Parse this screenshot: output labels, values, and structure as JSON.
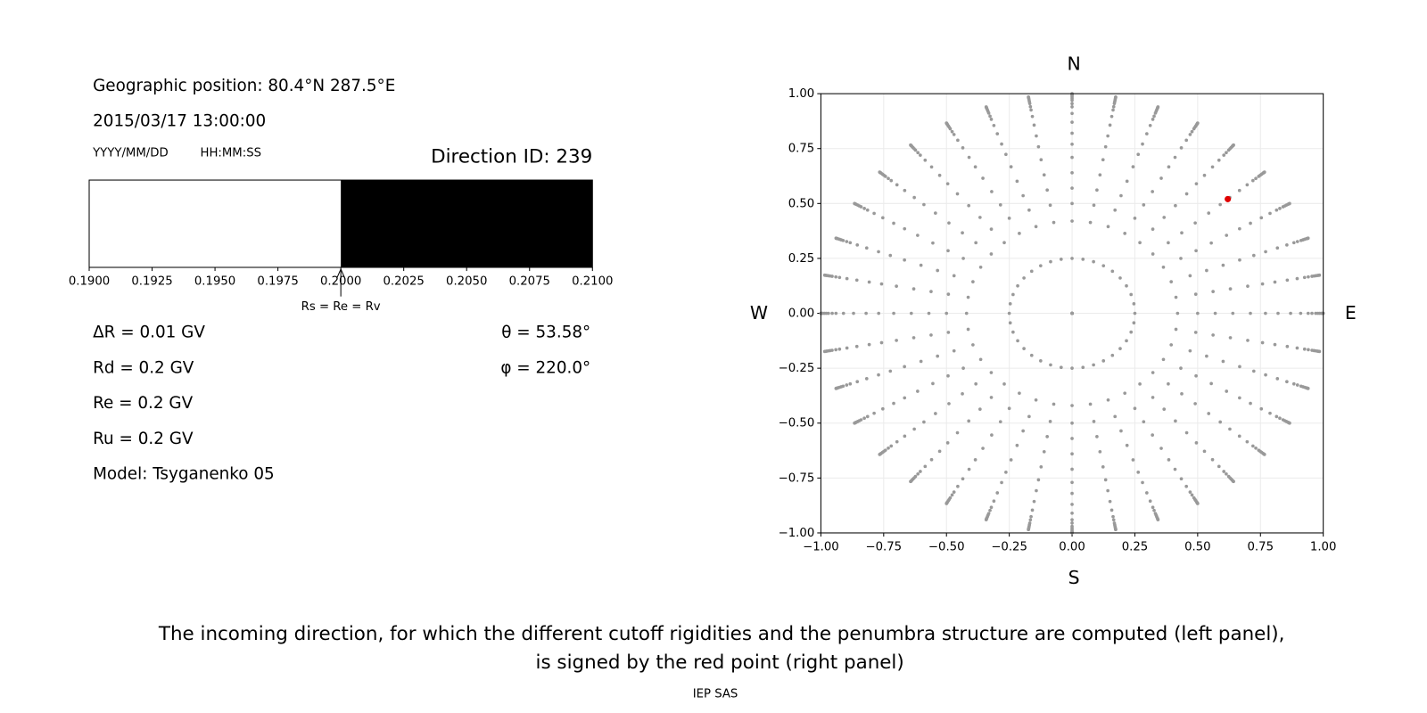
{
  "left_panel": {
    "position": "Geographic position: 80.4°N 287.5°E",
    "datetime": "2015/03/17 13:00:00",
    "date_format": "YYYY/MM/DD",
    "time_format": "HH:MM:SS",
    "direction_id": "Direction ID: 239",
    "parameters": [
      "ΔR = 0.01 GV",
      "Rd = 0.2 GV",
      "Re = 0.2 GV",
      "Ru = 0.2 GV",
      "Model: Tsyganenko 05"
    ],
    "angles": [
      "θ = 53.58°",
      "φ = 220.0°"
    ]
  },
  "chart_data": [
    {
      "type": "penumbra",
      "bins": [
        0.19,
        0.2,
        0.21
      ],
      "colors": [
        "#ffffff",
        "#000000"
      ],
      "xlim": [
        0.19,
        0.21
      ],
      "xticks": [
        {
          "value": 0.19,
          "label": "0.1900"
        },
        0.1925,
        {
          "value": 0.195,
          "label": "0.1950"
        },
        0.1975,
        {
          "value": 0.2,
          "label": "0.2000"
        },
        0.2025,
        {
          "value": 0.205,
          "label": "0.2050"
        },
        0.2075,
        {
          "value": 0.21,
          "label": "0.2100"
        }
      ],
      "annotation": {
        "text": "Rs = Re = Rv",
        "x": 0.2
      }
    },
    {
      "type": "polar_scatter",
      "azimuths": [
        0,
        10,
        20,
        30,
        40,
        50,
        60,
        70,
        80,
        90,
        100,
        110,
        120,
        130,
        140,
        150,
        160,
        170,
        180,
        190,
        200,
        210,
        220,
        230,
        240,
        250,
        260,
        270,
        280,
        290,
        300,
        310,
        320,
        330,
        340,
        350
      ],
      "radii": [
        0,
        0.25,
        0.42,
        0.5,
        0.57,
        0.64,
        0.71,
        0.77,
        0.82,
        0.87,
        0.91,
        0.94,
        0.955,
        0.97,
        0.978,
        0.985,
        0.992,
        0.996,
        0.999,
        1.0
      ],
      "color": "#999999",
      "highlight": {
        "x": 0.62,
        "y": 0.52,
        "color": "#e00000"
      },
      "xlim": [
        -1,
        1
      ],
      "ylim": [
        -1,
        1
      ],
      "xticks": [
        {
          "value": -1,
          "label": "−1.00"
        },
        {
          "value": -0.75,
          "label": "−0.75"
        },
        {
          "value": -0.5,
          "label": "−0.50"
        },
        {
          "value": -0.25,
          "label": "−0.25"
        },
        {
          "value": 0,
          "label": "0.00"
        },
        0.25,
        {
          "value": 0.5,
          "label": "0.50"
        },
        0.75,
        {
          "value": 1,
          "label": "1.00"
        }
      ],
      "yticks": [
        {
          "value": -1,
          "label": "−1.00"
        },
        {
          "value": -0.75,
          "label": "−0.75"
        },
        {
          "value": -0.5,
          "label": "−0.50"
        },
        {
          "value": -0.25,
          "label": "−0.25"
        },
        {
          "value": 0,
          "label": "0.00"
        },
        0.25,
        {
          "value": 0.5,
          "label": "0.50"
        },
        0.75,
        {
          "value": 1,
          "label": "1.00"
        }
      ],
      "grid": true,
      "compass": {
        "N": "N",
        "S": "S",
        "W": "W",
        "E": "E"
      }
    }
  ],
  "caption": [
    "The incoming direction, for which the different cutoff rigidities and the penumbra structure are computed (left panel),",
    "is signed by the red point (right panel)"
  ],
  "footer": "IEP SAS"
}
